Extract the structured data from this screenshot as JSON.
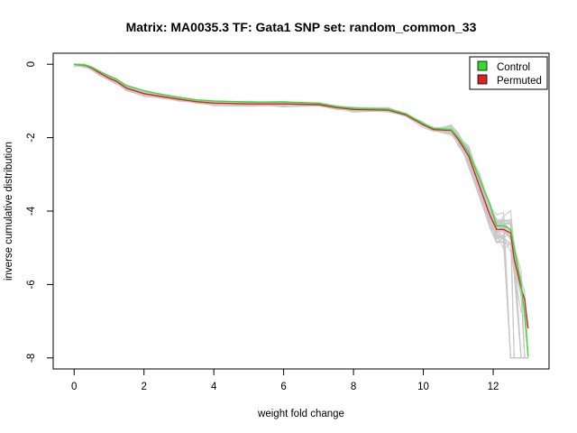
{
  "chart_data": {
    "type": "line",
    "title": "Matrix: MA0035.3 TF: Gata1 SNP set: random_common_33",
    "xlabel": "weight fold change",
    "ylabel": "inverse cumulative distribution",
    "xlim": [
      -0.6,
      13.6
    ],
    "ylim": [
      -8.3,
      0.3
    ],
    "xticks": [
      0,
      2,
      4,
      6,
      8,
      10,
      12
    ],
    "yticks": [
      0,
      -2,
      -4,
      -6,
      -8
    ],
    "grid": false,
    "legend_position": "top-right",
    "legend": [
      {
        "label": "Control",
        "color": "#33dd33"
      },
      {
        "label": "Permuted",
        "color": "#dd2222"
      }
    ],
    "series": [
      {
        "name": "Control",
        "color": "#33dd33",
        "x": [
          0,
          0.3,
          0.5,
          0.7,
          1.0,
          1.2,
          1.5,
          2.0,
          2.5,
          3.0,
          3.5,
          4.0,
          5.0,
          6.0,
          7.0,
          7.5,
          8.0,
          9.0,
          9.5,
          10.0,
          10.3,
          10.8,
          11.0,
          11.3,
          11.6,
          11.9,
          12.1,
          12.3,
          12.5,
          12.6,
          12.8,
          12.9,
          13.0
        ],
        "y": [
          0,
          -0.02,
          -0.08,
          -0.18,
          -0.32,
          -0.4,
          -0.58,
          -0.72,
          -0.82,
          -0.9,
          -0.97,
          -1.0,
          -1.03,
          -1.03,
          -1.06,
          -1.15,
          -1.2,
          -1.22,
          -1.35,
          -1.62,
          -1.75,
          -1.78,
          -2.0,
          -2.4,
          -3.1,
          -3.8,
          -4.4,
          -4.4,
          -4.5,
          -5.0,
          -6.0,
          -6.8,
          -7.95
        ]
      },
      {
        "name": "Permuted",
        "color": "#dd2222",
        "x": [
          0,
          0.3,
          0.5,
          0.7,
          1.0,
          1.2,
          1.5,
          2.0,
          2.5,
          3.0,
          3.5,
          4.0,
          5.0,
          6.0,
          7.0,
          7.5,
          8.0,
          9.0,
          9.5,
          10.0,
          10.3,
          10.8,
          11.0,
          11.3,
          11.6,
          11.9,
          12.1,
          12.3,
          12.5,
          12.6,
          12.8,
          12.9,
          13.0
        ],
        "y": [
          0,
          -0.03,
          -0.1,
          -0.22,
          -0.38,
          -0.46,
          -0.65,
          -0.8,
          -0.88,
          -0.95,
          -1.02,
          -1.06,
          -1.08,
          -1.08,
          -1.1,
          -1.18,
          -1.23,
          -1.25,
          -1.38,
          -1.65,
          -1.78,
          -1.8,
          -2.05,
          -2.5,
          -3.3,
          -4.1,
          -4.5,
          -4.5,
          -4.6,
          -5.3,
          -6.1,
          -6.4,
          -7.2
        ]
      }
    ],
    "background_series_color": "#c8c8c8"
  }
}
